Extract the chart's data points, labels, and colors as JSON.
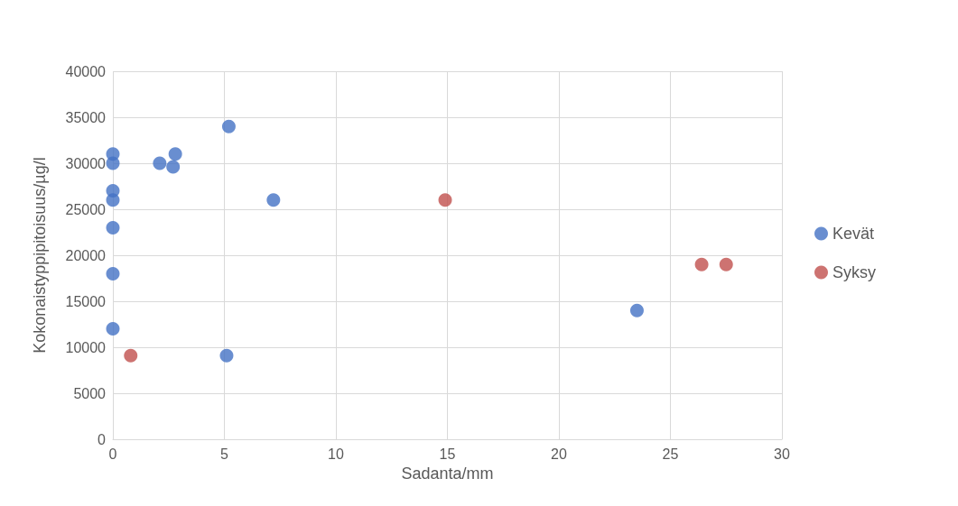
{
  "chart_data": {
    "type": "scatter",
    "xlabel": "Sadanta/mm",
    "ylabel": "Kokonaistyppipitoisuus/µg/l",
    "xlim": [
      0,
      30
    ],
    "xticks": [
      0,
      5,
      10,
      15,
      20,
      25,
      30
    ],
    "ylim": [
      0,
      40000
    ],
    "yticks": [
      0,
      5000,
      10000,
      15000,
      20000,
      25000,
      30000,
      35000,
      40000
    ],
    "grid": true,
    "legend": "right",
    "marker": "circle",
    "series": [
      {
        "name": "Kevät",
        "color": "#4472c4",
        "x": [
          0,
          0,
          0,
          0,
          0,
          0,
          0,
          2.1,
          2.7,
          2.8,
          5.2,
          7.2,
          5.1,
          23.5
        ],
        "values": [
          31000,
          30000,
          27000,
          26000,
          23000,
          18000,
          12000,
          30000,
          29600,
          31000,
          34000,
          26000,
          9100,
          14000
        ]
      },
      {
        "name": "Syksy",
        "color": "#c0504d",
        "x": [
          0.8,
          14.9,
          26.4,
          27.5
        ],
        "values": [
          9100,
          26000,
          19000,
          19000
        ]
      }
    ]
  }
}
